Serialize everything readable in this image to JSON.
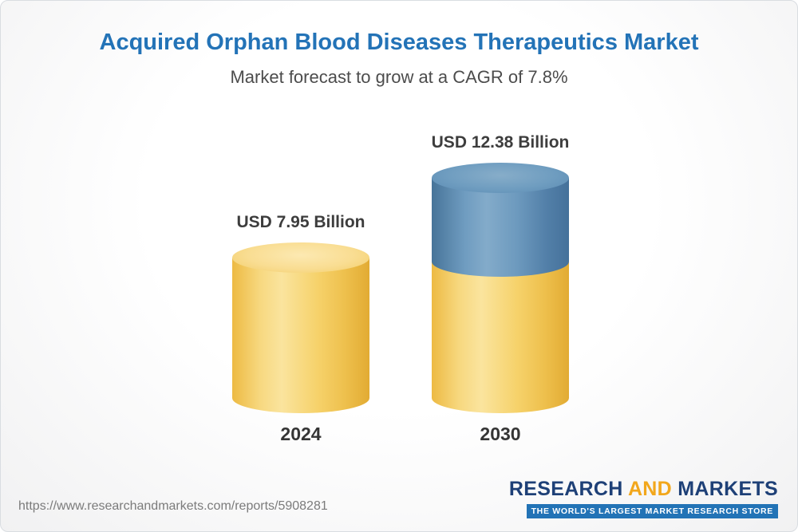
{
  "header": {
    "title": "Acquired Orphan Blood Diseases Therapeutics Market",
    "subtitle": "Market forecast to grow at a CAGR of 7.8%"
  },
  "chart_data": {
    "type": "bar",
    "bar_style": "3d-cylinder",
    "title": "Acquired Orphan Blood Diseases Therapeutics Market",
    "subtitle": "Market forecast to grow at a CAGR of 7.8%",
    "unit": "USD Billion",
    "cagr_percent": 7.8,
    "categories": [
      "2024",
      "2030"
    ],
    "values": [
      7.95,
      12.38
    ],
    "value_labels": [
      "USD 7.95 Billion",
      "USD 12.38 Billion"
    ],
    "series": [
      {
        "name": "base",
        "color": "#F5CE63",
        "values": [
          7.95,
          7.95
        ]
      },
      {
        "name": "growth",
        "color": "#5F8FB7",
        "values": [
          0,
          4.43
        ]
      }
    ],
    "ylim": [
      0,
      12.38
    ],
    "grid": false,
    "legend": false
  },
  "bars": [
    {
      "label": "2024",
      "value_label": "USD 7.95 Billion",
      "value": 7.95,
      "color": "#F5CE63"
    },
    {
      "label": "2030",
      "value_label": "USD 12.38 Billion",
      "value": 12.38,
      "colors": [
        "#F5CE63",
        "#5F8FB7"
      ]
    }
  ],
  "footer": {
    "url": "https://www.researchandmarkets.com/reports/5908281",
    "logo": {
      "research": "RESEARCH",
      "and": "AND",
      "markets": "MARKETS",
      "tagline": "THE WORLD'S LARGEST MARKET RESEARCH STORE"
    }
  },
  "theme": {
    "title_color": "#2373B7",
    "subtitle_color": "#4C4C4C",
    "bar_yellow": "#F5CE63",
    "bar_blue": "#5F8FB7",
    "logo_navy": "#1E4077",
    "logo_gold": "#F2A71C",
    "tagline_bg": "#2273B6"
  }
}
